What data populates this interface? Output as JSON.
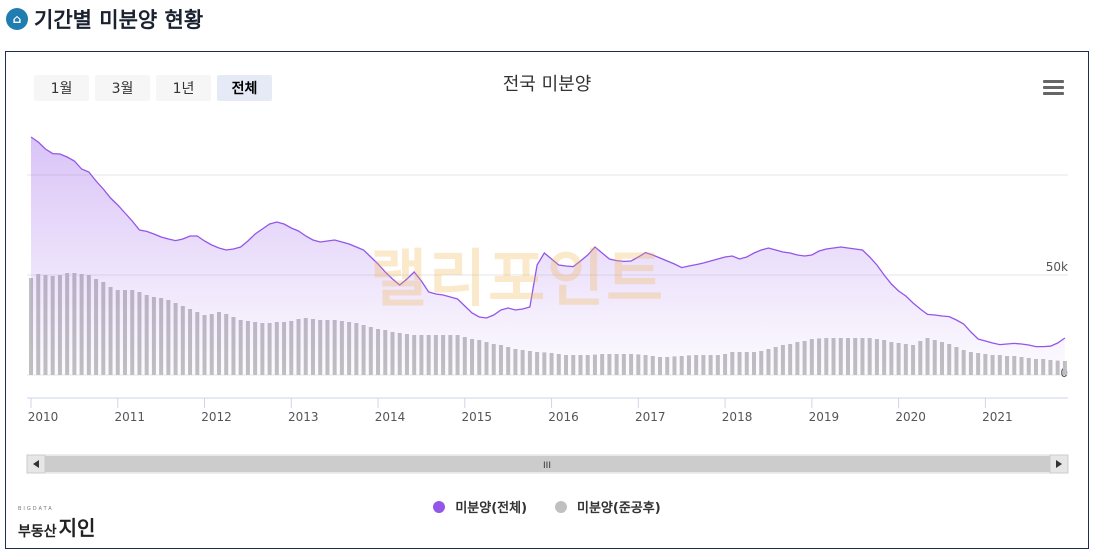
{
  "page_title": "기간별 미분양 현황",
  "range_buttons": [
    {
      "label": "1월"
    },
    {
      "label": "3월"
    },
    {
      "label": "1년"
    },
    {
      "label": "전체",
      "selected": true
    }
  ],
  "menu_icon": "hamburger-icon",
  "watermark": "랠리포인트",
  "logo": {
    "small": "BIGDATA",
    "left": "부동산",
    "right": "지인"
  },
  "scrollbar": {
    "grip": "III"
  },
  "chart_data": {
    "type": "line+bar",
    "title": "전국 미분양",
    "x_start": "2010-01",
    "x_end": "2021-12",
    "frequency": "monthly",
    "x_ticks": [
      "2010",
      "2011",
      "2012",
      "2013",
      "2014",
      "2015",
      "2016",
      "2017",
      "2018",
      "2019",
      "2020",
      "2021"
    ],
    "y_ticks": [
      {
        "value": 0,
        "label": "0"
      },
      {
        "value": 50000,
        "label": "50k"
      },
      {
        "value": 100000,
        "label": ""
      }
    ],
    "ylim": [
      0,
      120000
    ],
    "axis_side": "right",
    "legend_position": "bottom",
    "series": [
      {
        "name": "미분양(전체)",
        "type": "area-line",
        "color": "#9456e8",
        "values_k": [
          119,
          116.5,
          113,
          110.7,
          110.5,
          109,
          107,
          103,
          101.5,
          97,
          93,
          88.5,
          85,
          81,
          77,
          72.5,
          71.8,
          70.5,
          69,
          68,
          67.2,
          68,
          69.5,
          69.5,
          67,
          65,
          63.5,
          62.5,
          63,
          64,
          67,
          70.5,
          73,
          75.5,
          76.5,
          75.5,
          73.5,
          72,
          69.5,
          67.5,
          66.5,
          67,
          67.5,
          66.5,
          65.5,
          64,
          62.5,
          59,
          55.5,
          51.5,
          48,
          45,
          48,
          51.5,
          47,
          41.5,
          40.5,
          40,
          39,
          38,
          34.5,
          31,
          29,
          28.5,
          30,
          32.5,
          33.5,
          32.5,
          33,
          34,
          55,
          61,
          58,
          55,
          54.5,
          54.2,
          57,
          60,
          64,
          61,
          58,
          57.2,
          56.8,
          57,
          59,
          61.2,
          60,
          58.5,
          57,
          55.5,
          53.7,
          54.5,
          55.2,
          56,
          57,
          58,
          59,
          59.5,
          58,
          59,
          61,
          62.5,
          63.5,
          62.5,
          61.5,
          61,
          60,
          59.5,
          60,
          62,
          63,
          63.5,
          64,
          63.5,
          63,
          62.5,
          59,
          55,
          50,
          45.5,
          42,
          39.5,
          36,
          33,
          30.3,
          30,
          29.5,
          29.2,
          27.5,
          25.5,
          21.5,
          18,
          17,
          16,
          15.2,
          15.5,
          15.8,
          15.5,
          15,
          14.2,
          14.2,
          14.4,
          16,
          18.5
        ]
      },
      {
        "name": "미분양(준공후)",
        "type": "column",
        "color": "#c0c0c0",
        "values_k": [
          48.5,
          50.5,
          50,
          49.5,
          50,
          51,
          51,
          50.5,
          50,
          48,
          46.5,
          44,
          42.5,
          42.5,
          42.5,
          41.5,
          40,
          39,
          38.5,
          37.5,
          36,
          34.5,
          33,
          31.5,
          30,
          30.5,
          31.5,
          30.5,
          29,
          27.5,
          27,
          26.5,
          26,
          26,
          26.5,
          26.5,
          27,
          28,
          28.5,
          28,
          27.5,
          27.5,
          27.5,
          27,
          26.5,
          26,
          25,
          24,
          23,
          22.5,
          21.5,
          21,
          20.5,
          20,
          20,
          20,
          20,
          20,
          20,
          20,
          19,
          18,
          17.5,
          16.5,
          15.5,
          15,
          14,
          13,
          12.5,
          12,
          11.5,
          11.3,
          11,
          10.5,
          10,
          10,
          10,
          10,
          10.2,
          10.5,
          10.5,
          10.5,
          10.5,
          10.5,
          10.3,
          10,
          9.5,
          9,
          9,
          9.3,
          9.5,
          9.8,
          10,
          10,
          10,
          10,
          10.5,
          11.5,
          11.5,
          11.5,
          11.5,
          12,
          13,
          14,
          15,
          15.5,
          16.5,
          17,
          18,
          18.3,
          18.5,
          18.5,
          18.5,
          18.5,
          18.5,
          18.5,
          18.5,
          18,
          17.5,
          16.5,
          16,
          15.5,
          15,
          17,
          18.5,
          17.5,
          16.5,
          15.5,
          14,
          12.5,
          11.5,
          11,
          10.5,
          10,
          10,
          9.5,
          9.5,
          9,
          8.5,
          8,
          8,
          7.5,
          7.2,
          7
        ]
      }
    ]
  }
}
